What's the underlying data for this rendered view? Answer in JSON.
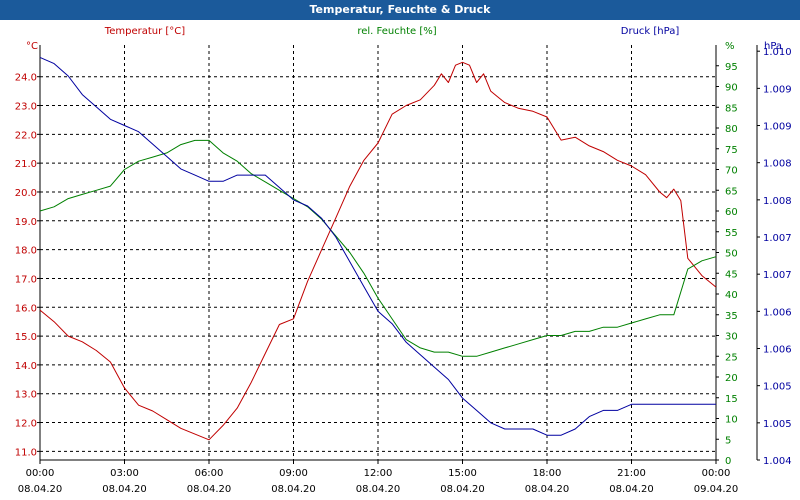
{
  "window": {
    "title": "Temperatur, Feuchte & Druck"
  },
  "colors": {
    "temperature": "#c00000",
    "humidity": "#008000",
    "pressure": "#0000a0",
    "grid": "#000000",
    "titlebar": "#1b5a9b"
  },
  "chart_data": {
    "type": "line",
    "title": "Temperatur, Feuchte & Druck",
    "grid": true,
    "x": {
      "tick_times": [
        "00:00",
        "03:00",
        "06:00",
        "09:00",
        "12:00",
        "15:00",
        "18:00",
        "21:00",
        "00:00"
      ],
      "tick_dates": [
        "08.04.20",
        "08.04.20",
        "08.04.20",
        "08.04.20",
        "08.04.20",
        "08.04.20",
        "08.04.20",
        "08.04.20",
        "09.04.20"
      ],
      "range": [
        "08.04.20 00:00",
        "09.04.20 00:00"
      ]
    },
    "axes": {
      "temperature": {
        "label": "Temperatur [°C]",
        "unit": "°C",
        "side": "left",
        "ylim": [
          10.7,
          25.1
        ],
        "ticks": [
          "11.0",
          "12.0",
          "13.0",
          "14.0",
          "15.0",
          "16.0",
          "17.0",
          "18.0",
          "19.0",
          "20.0",
          "21.0",
          "22.0",
          "23.0",
          "24.0"
        ]
      },
      "humidity": {
        "label": "rel. Feuchte [%]",
        "unit": "%",
        "side": "right",
        "ylim": [
          0,
          100
        ],
        "ticks": [
          "0",
          "5",
          "10",
          "15",
          "20",
          "25",
          "30",
          "35",
          "40",
          "45",
          "50",
          "55",
          "60",
          "65",
          "70",
          "75",
          "80",
          "85",
          "90",
          "95"
        ]
      },
      "pressure": {
        "label": "Druck [hPa]",
        "unit": "hPa",
        "side": "right",
        "ylim": [
          1.004,
          1.0107
        ],
        "ticks": [
          "1.004",
          "1.005",
          "1.005",
          "1.006",
          "1.006",
          "1.007",
          "1.007",
          "1.008",
          "1.008",
          "1.009",
          "1.009",
          "1.010"
        ],
        "tick_values": [
          1.004,
          1.0046,
          1.0052,
          1.0058,
          1.0064,
          1.007,
          1.0076,
          1.0082,
          1.0088,
          1.0094,
          1.01,
          1.0106
        ]
      }
    },
    "series": [
      {
        "name": "Temperatur [°C]",
        "axis": "temperature",
        "color": "#c00000",
        "x": [
          0,
          0.5,
          1,
          1.5,
          2,
          2.5,
          3,
          3.5,
          4,
          4.5,
          5,
          5.5,
          6,
          6.5,
          7,
          7.5,
          8,
          8.5,
          9,
          9.5,
          10,
          10.5,
          11,
          11.5,
          12,
          12.5,
          13,
          13.5,
          14,
          14.25,
          14.5,
          14.75,
          15,
          15.25,
          15.5,
          15.75,
          16,
          16.25,
          16.5,
          17,
          17.5,
          18,
          18.5,
          19,
          19.5,
          20,
          20.5,
          21,
          21.5,
          22,
          22.25,
          22.5,
          22.75,
          23,
          23.5,
          24
        ],
        "values": [
          15.9,
          15.5,
          15.0,
          14.8,
          14.5,
          14.1,
          13.2,
          12.6,
          12.4,
          12.1,
          11.8,
          11.6,
          11.4,
          11.9,
          12.5,
          13.4,
          14.4,
          15.4,
          15.6,
          16.9,
          18.0,
          19.1,
          20.2,
          21.1,
          21.7,
          22.7,
          23.0,
          23.2,
          23.7,
          24.1,
          23.8,
          24.4,
          24.5,
          24.4,
          23.8,
          24.1,
          23.5,
          23.3,
          23.1,
          22.9,
          22.8,
          22.6,
          21.8,
          21.9,
          21.6,
          21.4,
          21.1,
          20.9,
          20.6,
          20.0,
          19.8,
          20.1,
          19.7,
          17.7,
          17.1,
          16.7
        ]
      },
      {
        "name": "rel. Feuchte [%]",
        "axis": "humidity",
        "color": "#008000",
        "x": [
          0,
          0.5,
          1,
          1.5,
          2,
          2.5,
          3,
          3.5,
          4,
          4.5,
          5,
          5.5,
          6,
          6.5,
          7,
          7.5,
          8,
          8.5,
          9,
          9.5,
          10,
          10.5,
          11,
          11.5,
          12,
          12.5,
          13,
          13.5,
          14,
          14.5,
          15,
          15.5,
          16,
          16.5,
          17,
          17.5,
          18,
          18.5,
          19,
          19.5,
          20,
          20.5,
          21,
          21.5,
          22,
          22.5,
          23,
          23.5,
          24
        ],
        "values": [
          60,
          61,
          63,
          64,
          65,
          66,
          70,
          72,
          73,
          74,
          76,
          77,
          77,
          74,
          72,
          69,
          67,
          65,
          63,
          61,
          58,
          54,
          50,
          45,
          39,
          34,
          29,
          27,
          26,
          26,
          25,
          25,
          26,
          27,
          28,
          29,
          30,
          30,
          31,
          31,
          32,
          32,
          33,
          34,
          35,
          35,
          46,
          48,
          49
        ]
      },
      {
        "name": "Druck [hPa]",
        "axis": "pressure",
        "color": "#0000a0",
        "x": [
          0,
          0.5,
          1,
          1.5,
          2,
          2.5,
          3,
          3.5,
          4,
          4.5,
          5,
          5.5,
          6,
          6.5,
          7,
          7.5,
          8,
          8.5,
          9,
          9.5,
          10,
          10.5,
          11,
          11.5,
          12,
          12.5,
          13,
          13.5,
          14,
          14.5,
          15,
          15.5,
          16,
          16.5,
          17,
          17.5,
          18,
          18.5,
          19,
          19.5,
          20,
          20.5,
          21,
          21.5,
          22,
          22.5,
          23,
          23.5,
          24
        ],
        "values": [
          1.0105,
          1.0104,
          1.0102,
          1.0099,
          1.0097,
          1.0095,
          1.0094,
          1.0093,
          1.0091,
          1.0089,
          1.0087,
          1.0086,
          1.0085,
          1.0085,
          1.0086,
          1.0086,
          1.0086,
          1.0084,
          1.0082,
          1.0081,
          1.0079,
          1.0076,
          1.0072,
          1.0068,
          1.0064,
          1.0062,
          1.0059,
          1.0057,
          1.0055,
          1.0053,
          1.005,
          1.0048,
          1.0046,
          1.0045,
          1.0045,
          1.0045,
          1.0044,
          1.0044,
          1.0045,
          1.0047,
          1.0048,
          1.0048,
          1.0049,
          1.0049,
          1.0049,
          1.0049,
          1.0049,
          1.0049,
          1.0049
        ]
      }
    ]
  }
}
